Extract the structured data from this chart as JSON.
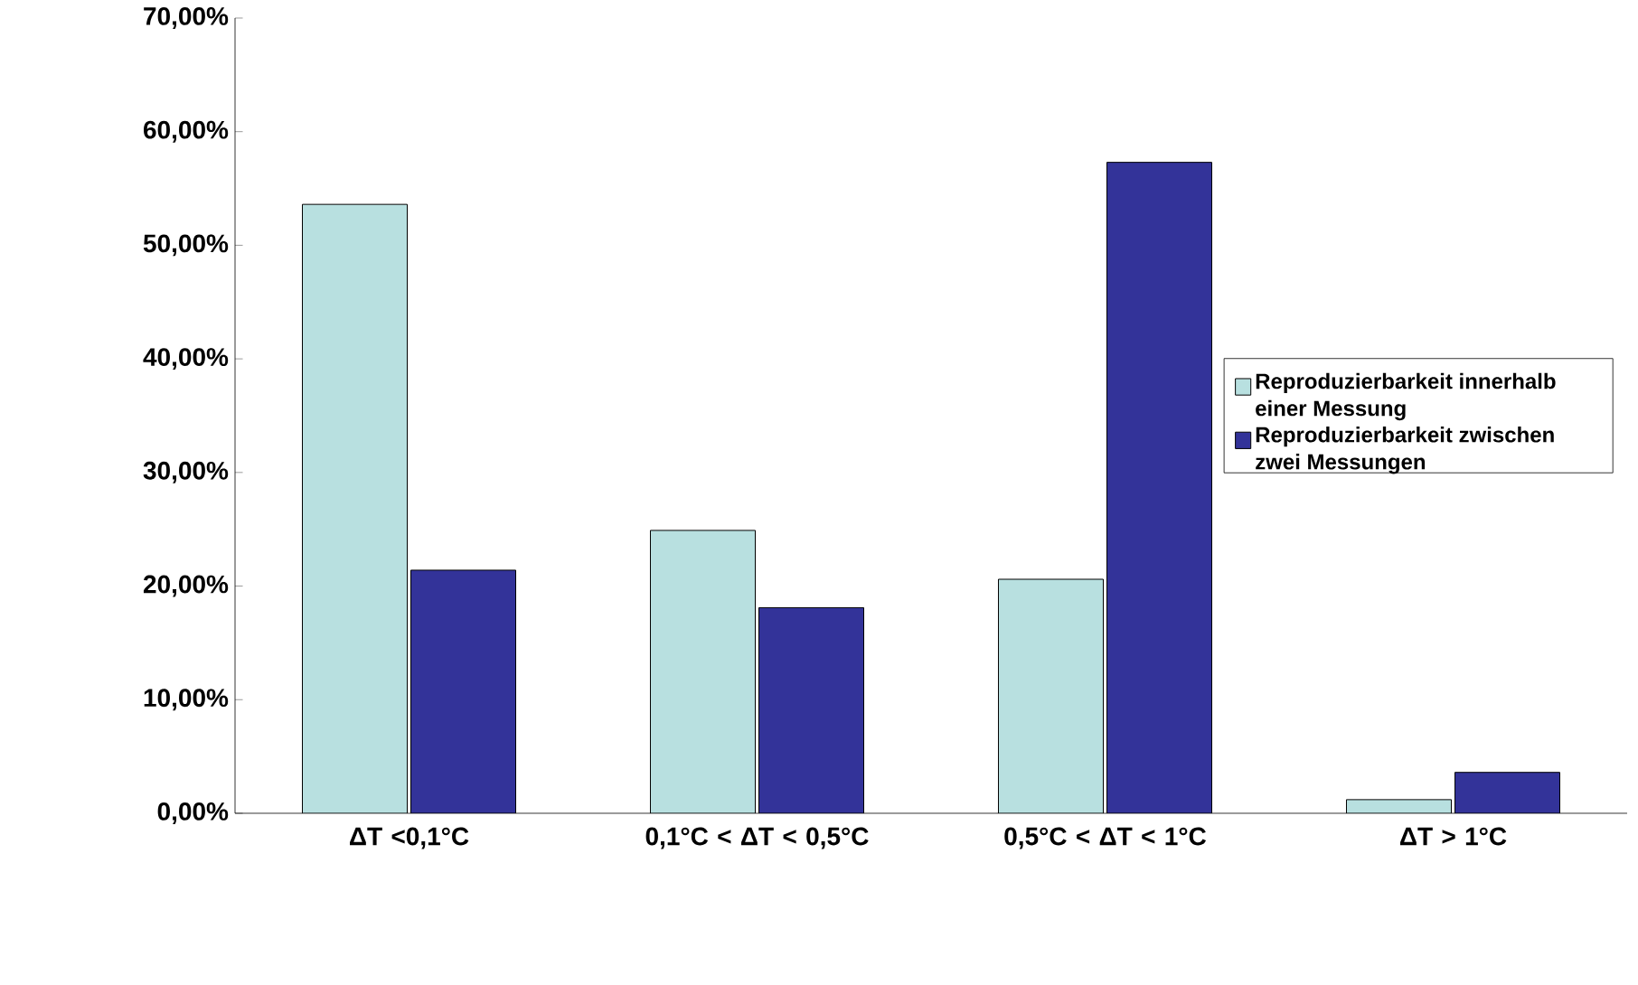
{
  "chart_data": {
    "type": "bar",
    "categories": [
      "ΔT <0,1°C",
      "0,1°C < ΔT < 0,5°C",
      "0,5°C < ΔT < 1°C",
      "ΔT > 1°C"
    ],
    "series": [
      {
        "name": "Reproduzierbarkeit innerhalb einer Messung",
        "color": "#b8e0e0",
        "values": [
          53.6,
          24.9,
          20.6,
          1.2
        ]
      },
      {
        "name": "Reproduzierbarkeit zwischen zwei Messungen",
        "color": "#333399",
        "values": [
          21.4,
          18.1,
          57.3,
          3.6
        ]
      }
    ],
    "ylim": [
      0,
      70
    ],
    "yticks": [
      {
        "value": 0,
        "label": "0,00%"
      },
      {
        "value": 10,
        "label": "10,00%"
      },
      {
        "value": 20,
        "label": "20,00%"
      },
      {
        "value": 30,
        "label": "30,00%"
      },
      {
        "value": 40,
        "label": "40,00%"
      },
      {
        "value": 50,
        "label": "50,00%"
      },
      {
        "value": 60,
        "label": "60,00%"
      },
      {
        "value": 70,
        "label": "70,00%"
      }
    ],
    "grid": false,
    "legend": "right"
  }
}
